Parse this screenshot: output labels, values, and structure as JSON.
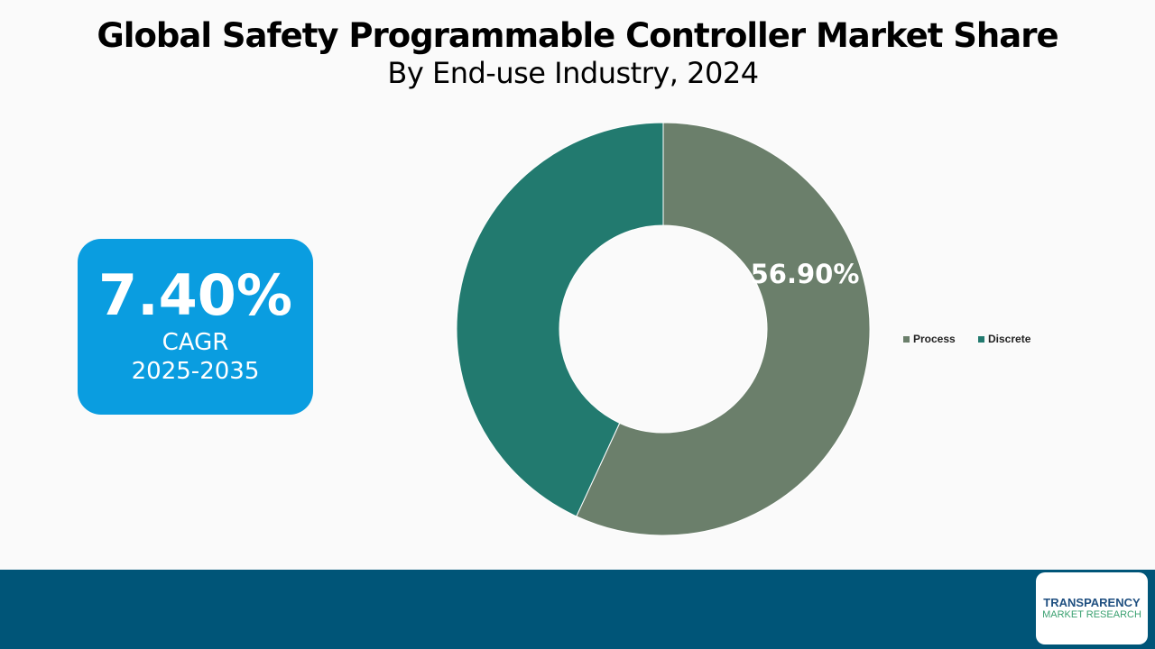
{
  "title": "Global Safety Programmable Controller Market Share",
  "subtitle": "By End-use Industry, 2024",
  "cagr": {
    "value": "7.40%",
    "label": "CAGR",
    "period": "2025-2035"
  },
  "logo": {
    "line1": "TRANSPARENCY",
    "line2": "MARKET RESEARCH"
  },
  "chart_data": {
    "type": "pie",
    "donut": true,
    "categories": [
      "Process",
      "Discrete"
    ],
    "values": [
      56.9,
      43.1
    ],
    "data_labels": [
      "56.90%",
      ""
    ],
    "colors": [
      "#6b7f6b",
      "#227a6f"
    ],
    "legend": "right"
  }
}
